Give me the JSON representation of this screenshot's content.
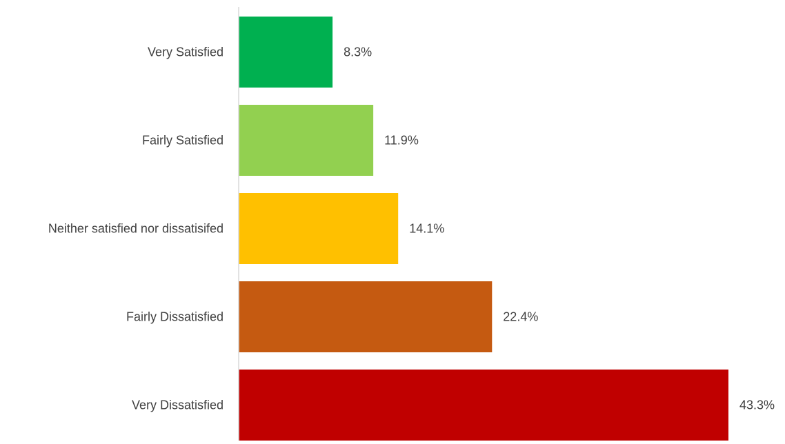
{
  "chart_data": {
    "type": "bar",
    "orientation": "horizontal",
    "categories": [
      "Very Satisfied",
      "Fairly Satisfied",
      "Neither satisfied nor dissatisifed",
      "Fairly Dissatisfied",
      "Very Dissatisfied"
    ],
    "values": [
      8.3,
      11.9,
      14.1,
      22.4,
      43.3
    ],
    "data_labels": [
      "8.3%",
      "11.9%",
      "14.1%",
      "22.4%",
      "43.3%"
    ],
    "colors": [
      "#00b050",
      "#92d050",
      "#ffc000",
      "#c55a11",
      "#c00000"
    ],
    "unit": "%",
    "xlim": [
      0,
      43.3
    ],
    "grid": false,
    "legend": "none",
    "title": "",
    "xlabel": "",
    "ylabel": ""
  }
}
